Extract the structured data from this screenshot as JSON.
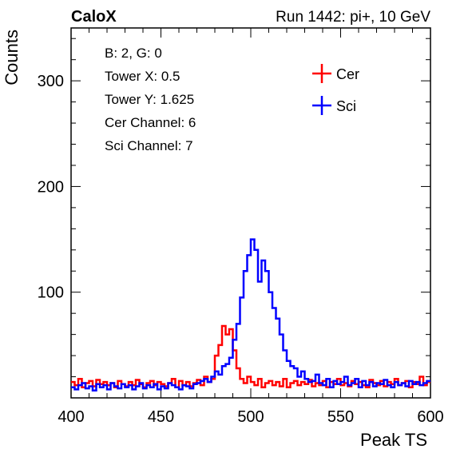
{
  "header": {
    "left_title": "CaloX",
    "right_title": "Run 1442: pi+, 10 GeV"
  },
  "info_box": [
    "B: 2, G: 0",
    "Tower X: 0.5",
    "Tower Y: 1.625",
    "Cer Channel: 6",
    "Sci Channel: 7"
  ],
  "chart_data": {
    "type": "line",
    "subtype": "step-histogram",
    "xlabel": "Peak TS",
    "ylabel": "Counts",
    "xlim": [
      400,
      600
    ],
    "ylim": [
      0,
      350
    ],
    "x_ticks": [
      400,
      450,
      500,
      550,
      600
    ],
    "y_ticks": [
      100,
      200,
      300
    ],
    "grid": false,
    "legend_position": "top-right",
    "bin_width": 2,
    "x": [
      400,
      402,
      404,
      406,
      408,
      410,
      412,
      414,
      416,
      418,
      420,
      422,
      424,
      426,
      428,
      430,
      432,
      434,
      436,
      438,
      440,
      442,
      444,
      446,
      448,
      450,
      452,
      454,
      456,
      458,
      460,
      462,
      464,
      466,
      468,
      470,
      472,
      474,
      476,
      478,
      480,
      482,
      484,
      486,
      488,
      490,
      492,
      494,
      496,
      498,
      500,
      502,
      504,
      506,
      508,
      510,
      512,
      514,
      516,
      518,
      520,
      522,
      524,
      526,
      528,
      530,
      532,
      534,
      536,
      538,
      540,
      542,
      544,
      546,
      548,
      550,
      552,
      554,
      556,
      558,
      560,
      562,
      564,
      566,
      568,
      570,
      572,
      574,
      576,
      578,
      580,
      582,
      584,
      586,
      588,
      590,
      592,
      594,
      596,
      598
    ],
    "series": [
      {
        "name": "Cer",
        "color": "#ff0000",
        "values": [
          15,
          12,
          18,
          10,
          14,
          16,
          11,
          17,
          13,
          15,
          12,
          14,
          10,
          16,
          13,
          11,
          15,
          12,
          17,
          13,
          10,
          14,
          16,
          12,
          15,
          13,
          11,
          14,
          18,
          10,
          16,
          12,
          15,
          11,
          14,
          17,
          12,
          20,
          15,
          18,
          40,
          50,
          68,
          60,
          65,
          45,
          28,
          18,
          14,
          20,
          15,
          12,
          18,
          10,
          14,
          16,
          12,
          15,
          11,
          18,
          10,
          14,
          16,
          12,
          15,
          13,
          17,
          11,
          14,
          12,
          16,
          10,
          15,
          13,
          18,
          12,
          14,
          11,
          16,
          13,
          15,
          12,
          10,
          17,
          14,
          12,
          16,
          11,
          15,
          13,
          18,
          12,
          14,
          16,
          10,
          15,
          13,
          20,
          12,
          15
        ]
      },
      {
        "name": "Sci",
        "color": "#0000ff",
        "values": [
          10,
          8,
          12,
          14,
          9,
          11,
          7,
          13,
          10,
          12,
          8,
          14,
          11,
          9,
          13,
          10,
          12,
          8,
          11,
          14,
          9,
          12,
          10,
          13,
          8,
          11,
          9,
          14,
          12,
          10,
          8,
          12,
          11,
          9,
          13,
          14,
          16,
          18,
          15,
          20,
          25,
          22,
          30,
          32,
          38,
          55,
          70,
          95,
          120,
          135,
          150,
          140,
          110,
          130,
          120,
          100,
          85,
          75,
          60,
          45,
          35,
          30,
          28,
          20,
          25,
          18,
          15,
          16,
          22,
          14,
          12,
          18,
          10,
          16,
          13,
          15,
          20,
          12,
          14,
          18,
          10,
          16,
          12,
          15,
          11,
          14,
          13,
          17,
          12,
          10,
          15,
          12,
          14,
          11,
          16,
          13,
          15,
          12,
          14,
          16
        ]
      }
    ]
  }
}
